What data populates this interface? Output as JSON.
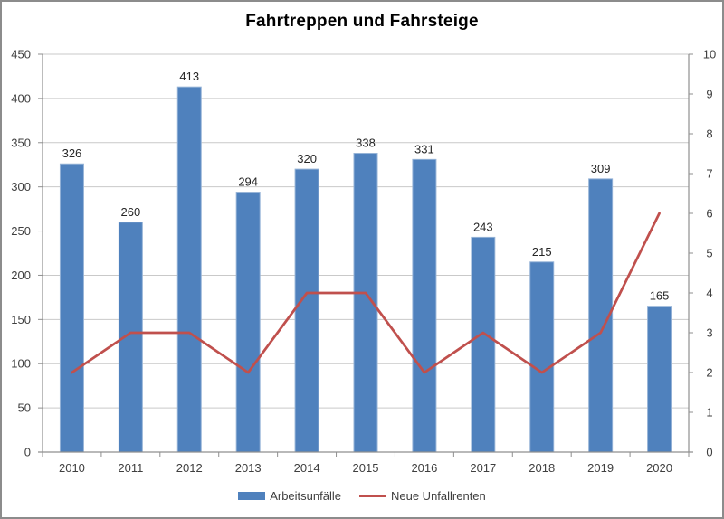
{
  "title": "Fahrtreppen und Fahrsteige",
  "chart_data": {
    "type": "combo-bar-line",
    "title": "Fahrtreppen und Fahrsteige",
    "categories": [
      "2010",
      "2011",
      "2012",
      "2013",
      "2014",
      "2015",
      "2016",
      "2017",
      "2018",
      "2019",
      "2020"
    ],
    "series": [
      {
        "name": "Arbeitsunfälle",
        "type": "bar",
        "axis": "left",
        "color": "#4F81BD",
        "border_color": "#95B3D7",
        "values": [
          326,
          260,
          413,
          294,
          320,
          338,
          331,
          243,
          215,
          309,
          165
        ],
        "data_labels": true
      },
      {
        "name": "Neue Unfallrenten",
        "type": "line",
        "axis": "right",
        "color": "#C0504D",
        "values": [
          2,
          3,
          3,
          2,
          4,
          4,
          2,
          3,
          2,
          3,
          6
        ],
        "data_labels": false
      }
    ],
    "left_axis": {
      "min": 0,
      "max": 450,
      "step": 50,
      "tick_labels": [
        "0",
        "50",
        "100",
        "150",
        "200",
        "250",
        "300",
        "350",
        "400",
        "450"
      ]
    },
    "right_axis": {
      "min": 0,
      "max": 10,
      "step": 1,
      "tick_labels": [
        "0",
        "1",
        "2",
        "3",
        "4",
        "5",
        "6",
        "7",
        "8",
        "9",
        "10"
      ]
    },
    "grid": true,
    "legend_position": "bottom"
  },
  "colors": {
    "grid_line": "#C9C9C9",
    "axis_line": "#8F8F8F",
    "tick_text": "#3F3F3F",
    "data_label_text": "#262626",
    "title_text": "#000000",
    "frame_border": "#8C8C8C",
    "background": "#FFFFFF"
  }
}
